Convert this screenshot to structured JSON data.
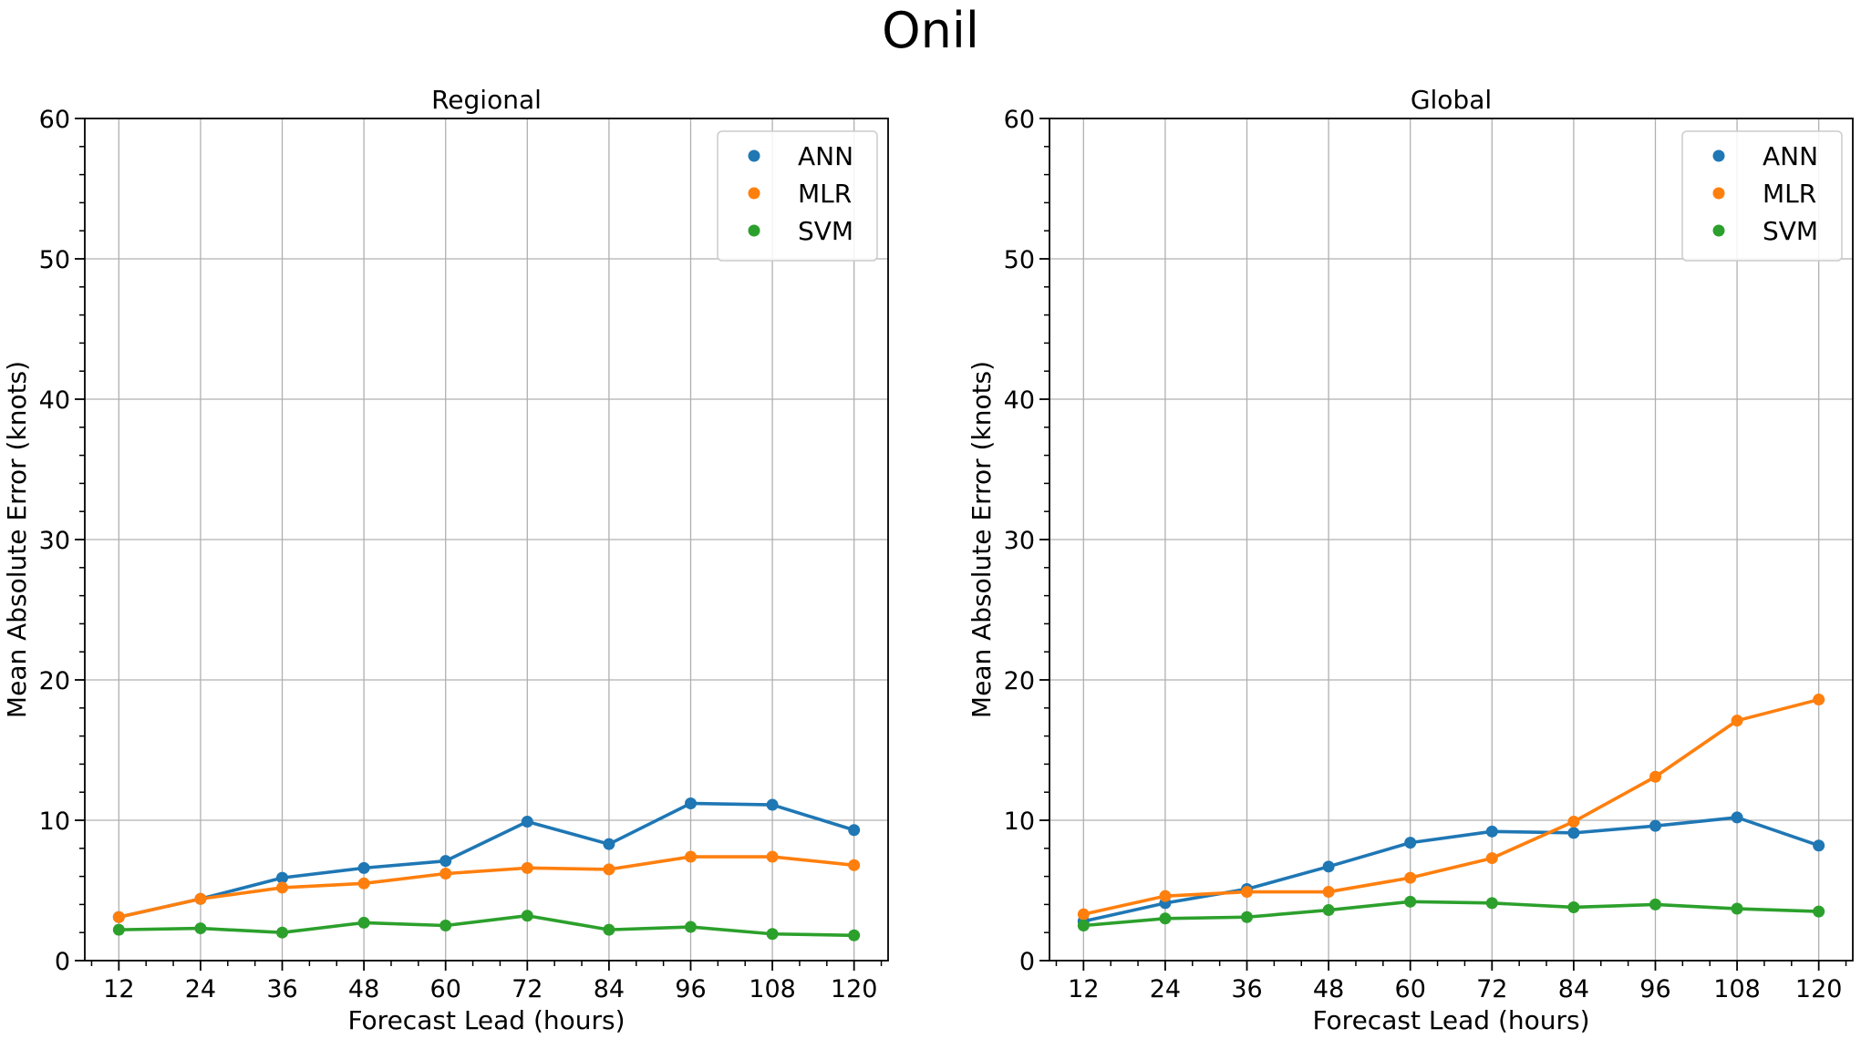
{
  "figure": {
    "suptitle": "Onil"
  },
  "colors": {
    "ANN": "#1f77b4",
    "MLR": "#ff7f0e",
    "SVM": "#2ca02c",
    "grid": "#b0b0b0"
  },
  "chart_data": [
    {
      "type": "line",
      "title": "Regional",
      "xlabel": "Forecast Lead (hours)",
      "ylabel": "Mean Absolute Error (knots)",
      "x": [
        12,
        24,
        36,
        48,
        60,
        72,
        84,
        96,
        108,
        120
      ],
      "xticks": [
        "12",
        "24",
        "36",
        "48",
        "60",
        "72",
        "84",
        "96",
        "108",
        "120"
      ],
      "yticks": [
        "0",
        "10",
        "20",
        "30",
        "40",
        "50",
        "60"
      ],
      "xlim": [
        7,
        125
      ],
      "ylim": [
        0,
        60
      ],
      "grid": true,
      "legend": "top-right",
      "series": [
        {
          "name": "ANN",
          "values": [
            3.1,
            4.4,
            5.9,
            6.6,
            7.1,
            9.9,
            8.3,
            11.2,
            11.1,
            9.3
          ]
        },
        {
          "name": "MLR",
          "values": [
            3.1,
            4.4,
            5.2,
            5.5,
            6.2,
            6.6,
            6.5,
            7.4,
            7.4,
            6.8
          ]
        },
        {
          "name": "SVM",
          "values": [
            2.2,
            2.3,
            2.0,
            2.7,
            2.5,
            3.2,
            2.2,
            2.4,
            1.9,
            1.8
          ]
        }
      ]
    },
    {
      "type": "line",
      "title": "Global",
      "xlabel": "Forecast Lead (hours)",
      "ylabel": "Mean Absolute Error (knots)",
      "x": [
        12,
        24,
        36,
        48,
        60,
        72,
        84,
        96,
        108,
        120
      ],
      "xticks": [
        "12",
        "24",
        "36",
        "48",
        "60",
        "72",
        "84",
        "96",
        "108",
        "120"
      ],
      "yticks": [
        "0",
        "10",
        "20",
        "30",
        "40",
        "50",
        "60"
      ],
      "xlim": [
        7,
        125
      ],
      "ylim": [
        0,
        60
      ],
      "grid": true,
      "legend": "top-right",
      "series": [
        {
          "name": "ANN",
          "values": [
            2.8,
            4.1,
            5.1,
            6.7,
            8.4,
            9.2,
            9.1,
            9.6,
            10.2,
            8.2
          ]
        },
        {
          "name": "MLR",
          "values": [
            3.3,
            4.6,
            4.9,
            4.9,
            5.9,
            7.3,
            9.9,
            13.1,
            17.1,
            18.6
          ]
        },
        {
          "name": "SVM",
          "values": [
            2.5,
            3.0,
            3.1,
            3.6,
            4.2,
            4.1,
            3.8,
            4.0,
            3.7,
            3.5
          ]
        }
      ]
    }
  ]
}
